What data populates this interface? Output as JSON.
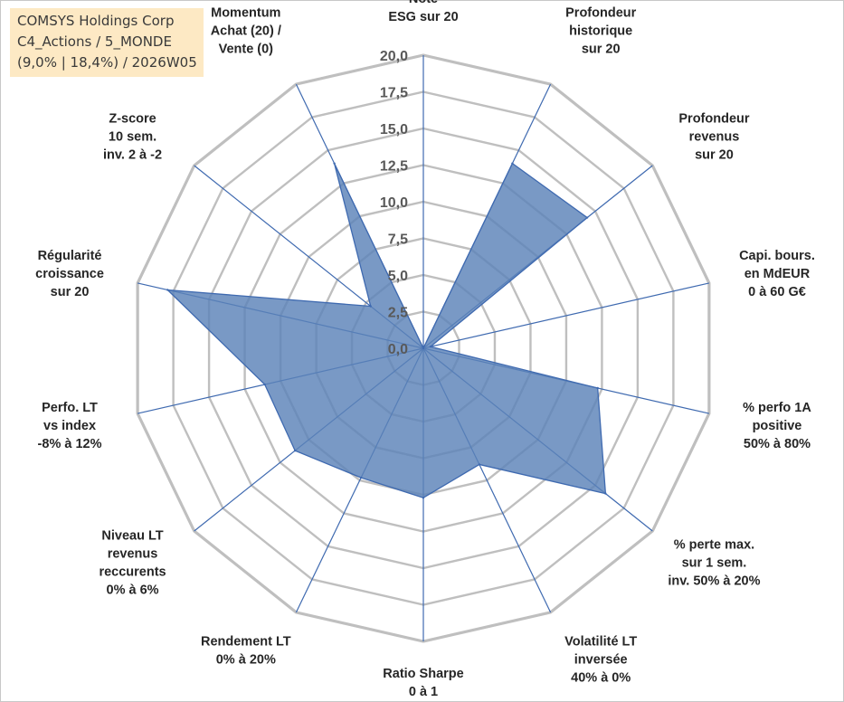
{
  "title_box": {
    "line1": "COMSYS Holdings Corp",
    "line2": "C4_Actions / 5_MONDE",
    "line3": "(9,0% | 18,4%) / 2026W05"
  },
  "chart_data": {
    "type": "radar",
    "range": [
      0,
      20
    ],
    "ticks": [
      "0,0",
      "2,5",
      "5,0",
      "7,5",
      "10,0",
      "12,5",
      "15,0",
      "17,5",
      "20,0"
    ],
    "gridlines": true,
    "axes": [
      {
        "lines": [
          "Note",
          "ESG sur 20"
        ],
        "value": 0
      },
      {
        "lines": [
          "Profondeur",
          "historique",
          "sur 20"
        ],
        "value": 14.0
      },
      {
        "lines": [
          "Profondeur",
          "revenus",
          "sur 20"
        ],
        "value": 14.3
      },
      {
        "lines": [
          "Capi. bours.",
          "en MdEUR",
          "0 à 60 G€"
        ],
        "value": 0.5
      },
      {
        "lines": [
          "% perfo 1A",
          "positive",
          "50% à 80%"
        ],
        "value": 12.2
      },
      {
        "lines": [
          "% perte max.",
          "sur 1 sem.",
          "inv. 50% à 20%"
        ],
        "value": 15.9
      },
      {
        "lines": [
          "Volatilité LT",
          "inversée",
          "40% à 0%"
        ],
        "value": 8.8
      },
      {
        "lines": [
          "Ratio Sharpe",
          "0 à 1"
        ],
        "value": 10.2
      },
      {
        "lines": [
          "Rendement LT",
          "0% à 20%"
        ],
        "value": 9.8
      },
      {
        "lines": [
          "Niveau LT",
          "revenus",
          "reccurents",
          "0% à 6%"
        ],
        "value": 11.2
      },
      {
        "lines": [
          "Perfo. LT",
          "vs index",
          "-8% à 12%"
        ],
        "value": 11.1
      },
      {
        "lines": [
          "Régularité",
          "croissance",
          "sur 20"
        ],
        "value": 17.9
      },
      {
        "lines": [
          "Z-score",
          "10 sem.",
          "inv. 2 à -2"
        ],
        "value": 4.6
      },
      {
        "lines": [
          "Momentum",
          "Achat (20) /",
          "Vente (0)"
        ],
        "value": 14.0
      }
    ],
    "colors": {
      "fill": "#5b82b8",
      "stroke": "#3f6ab0",
      "grid": "#bfbfbf",
      "spoke": "#3f6ab0",
      "title_bg": "#fde9c4"
    }
  }
}
